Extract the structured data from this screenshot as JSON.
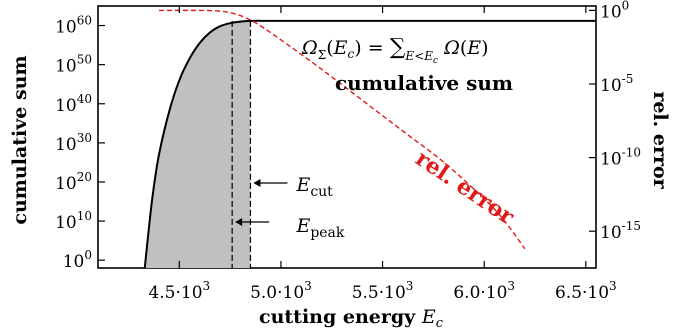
{
  "chart_data": {
    "type": "line",
    "xlabel": "cutting energy E_c",
    "ylabel_left": "cumulative sum",
    "ylabel_right": "rel. error",
    "xlim": [
      4100,
      6550
    ],
    "ylim_left_log10": [
      -2,
      65
    ],
    "ylim_right_log10": [
      -17.5,
      0.3
    ],
    "x_ticks": [
      {
        "value": 4500,
        "mantissa": "4.5·10",
        "exp": "3"
      },
      {
        "value": 5000,
        "mantissa": "5.0·10",
        "exp": "3"
      },
      {
        "value": 5500,
        "mantissa": "5.5·10",
        "exp": "3"
      },
      {
        "value": 6000,
        "mantissa": "6.0·10",
        "exp": "3"
      },
      {
        "value": 6500,
        "mantissa": "6.5·10",
        "exp": "3"
      }
    ],
    "y_left_ticks": [
      {
        "log10": 0,
        "base": "10",
        "exp": "0"
      },
      {
        "log10": 10,
        "base": "10",
        "exp": "10"
      },
      {
        "log10": 20,
        "base": "10",
        "exp": "20"
      },
      {
        "log10": 30,
        "base": "10",
        "exp": "30"
      },
      {
        "log10": 40,
        "base": "10",
        "exp": "40"
      },
      {
        "log10": 50,
        "base": "10",
        "exp": "50"
      },
      {
        "log10": 60,
        "base": "10",
        "exp": "60"
      }
    ],
    "y_right_ticks": [
      {
        "log10": 0,
        "base": "10",
        "exp": "0"
      },
      {
        "log10": -5,
        "base": "10",
        "exp": "-5"
      },
      {
        "log10": -10,
        "base": "10",
        "exp": "-10"
      },
      {
        "log10": -15,
        "base": "10",
        "exp": "-15"
      }
    ],
    "series": [
      {
        "name": "cumulative sum",
        "axis": "left",
        "color": "#000000",
        "style": "solid",
        "x": [
          4330,
          4350,
          4370,
          4400,
          4450,
          4500,
          4550,
          4600,
          4650,
          4700,
          4750,
          4800,
          4850,
          5000,
          5500,
          6000,
          6550
        ],
        "y_log10": [
          -2,
          8,
          17,
          27,
          38,
          46,
          51.5,
          55.5,
          58.2,
          59.8,
          60.6,
          61,
          61.2,
          61.2,
          61.2,
          61.2,
          61.2
        ]
      },
      {
        "name": "rel. error",
        "axis": "right",
        "color": "#e01a1a",
        "style": "dashed",
        "x": [
          4400,
          4600,
          4700,
          4750,
          4800,
          4850,
          4900,
          5000,
          5200,
          5400,
          5600,
          5800,
          6000,
          6100,
          6200
        ],
        "y_log10": [
          0,
          0,
          -0.05,
          -0.15,
          -0.35,
          -0.65,
          -1.05,
          -2,
          -4,
          -6.1,
          -8.2,
          -10.3,
          -12.8,
          -14.3,
          -16.2
        ]
      }
    ],
    "shaded_region": {
      "from_x": 4330,
      "to_x": 4850,
      "color": "#c0c0c0"
    },
    "vertical_lines": [
      {
        "x": 4760,
        "label_main": "E",
        "label_sub": "peak"
      },
      {
        "x": 4850,
        "label_main": "E",
        "label_sub": "cut"
      }
    ],
    "annotations": {
      "formula": "Ω_Σ(E_c) = ∑_{E<E_c} Ω(E)",
      "cumulative_label": "cumulative sum",
      "error_label": "rel. error"
    }
  }
}
